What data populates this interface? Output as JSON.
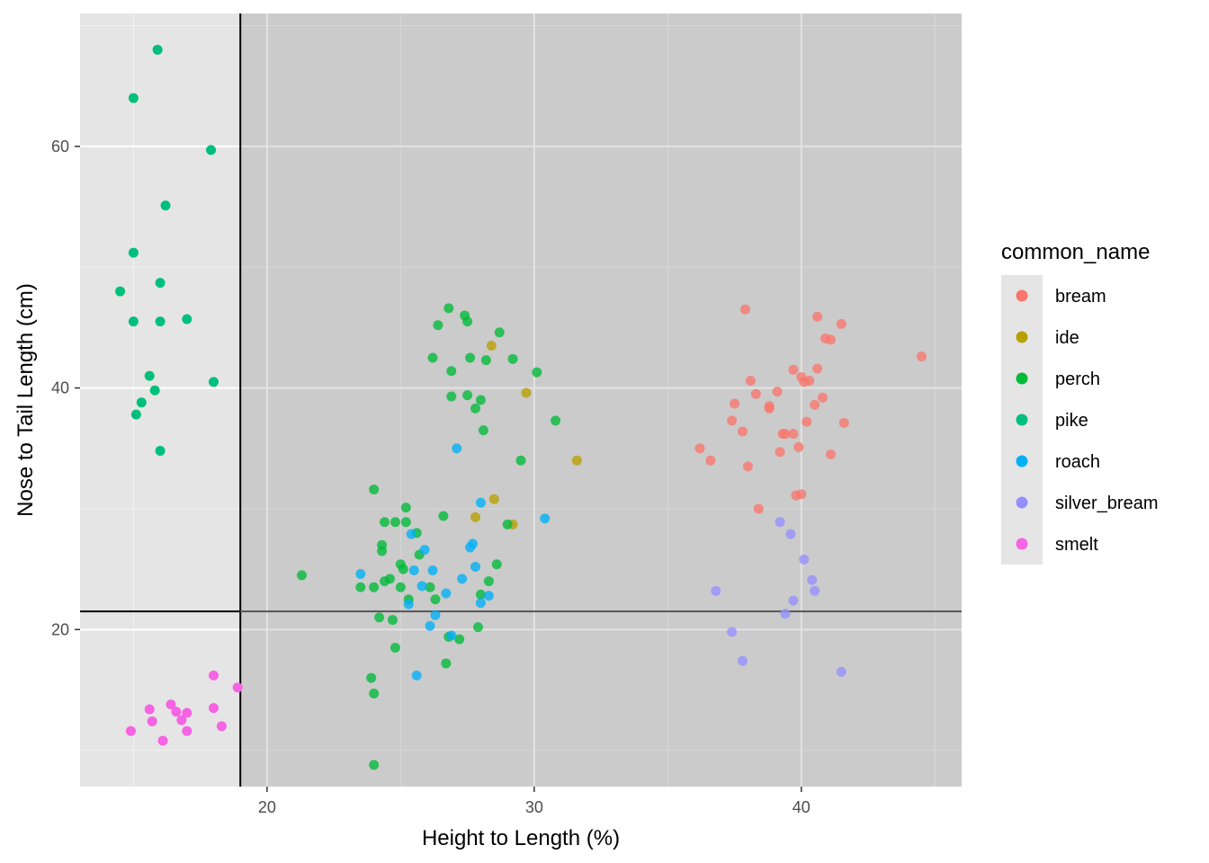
{
  "chart_data": {
    "type": "scatter",
    "xlabel": "Height to Length (%)",
    "ylabel": "Nose to Tail Length (cm)",
    "xlim": [
      13,
      46
    ],
    "ylim": [
      7,
      71
    ],
    "x_ticks": [
      20,
      30,
      40
    ],
    "x_tick_labels": [
      "20",
      "30",
      "40"
    ],
    "y_ticks": [
      20,
      40,
      60
    ],
    "y_tick_labels": [
      "20",
      "40",
      "60"
    ],
    "grid": true,
    "legend_placement": "right",
    "legend_title": "common_name",
    "reference_lines": {
      "vertical_x": 19,
      "horizontal_y": 21.5
    },
    "series": [
      {
        "name": "bream",
        "color": "#F8766D",
        "points": [
          [
            37.9,
            46.5
          ],
          [
            40.6,
            45.9
          ],
          [
            41.5,
            45.3
          ],
          [
            40.9,
            44.1
          ],
          [
            41.1,
            44.0
          ],
          [
            44.5,
            42.6
          ],
          [
            39.7,
            41.5
          ],
          [
            40.6,
            41.6
          ],
          [
            40.0,
            40.9
          ],
          [
            40.1,
            40.5
          ],
          [
            40.3,
            40.6
          ],
          [
            38.1,
            40.6
          ],
          [
            39.1,
            39.7
          ],
          [
            38.3,
            39.5
          ],
          [
            40.8,
            39.2
          ],
          [
            40.5,
            38.6
          ],
          [
            38.8,
            38.5
          ],
          [
            38.8,
            38.3
          ],
          [
            37.5,
            38.7
          ],
          [
            37.4,
            37.3
          ],
          [
            40.2,
            37.2
          ],
          [
            41.6,
            37.1
          ],
          [
            37.8,
            36.4
          ],
          [
            39.3,
            36.2
          ],
          [
            39.4,
            36.2
          ],
          [
            39.7,
            36.2
          ],
          [
            39.9,
            35.1
          ],
          [
            39.2,
            34.7
          ],
          [
            41.1,
            34.5
          ],
          [
            36.2,
            35.0
          ],
          [
            36.6,
            34.0
          ],
          [
            38.0,
            33.5
          ],
          [
            38.4,
            30.0
          ],
          [
            39.8,
            31.1
          ],
          [
            40.0,
            31.2
          ]
        ]
      },
      {
        "name": "ide",
        "color": "#B79F00",
        "points": [
          [
            28.4,
            43.5
          ],
          [
            29.7,
            39.6
          ],
          [
            31.6,
            34.0
          ],
          [
            28.5,
            30.8
          ],
          [
            27.8,
            29.3
          ],
          [
            29.2,
            28.7
          ]
        ]
      },
      {
        "name": "perch",
        "color": "#00BA38",
        "points": [
          [
            26.8,
            46.6
          ],
          [
            27.4,
            46.0
          ],
          [
            27.5,
            45.5
          ],
          [
            26.4,
            45.2
          ],
          [
            28.7,
            44.6
          ],
          [
            26.2,
            42.5
          ],
          [
            27.6,
            42.5
          ],
          [
            28.2,
            42.3
          ],
          [
            29.2,
            42.4
          ],
          [
            26.9,
            41.4
          ],
          [
            30.1,
            41.3
          ],
          [
            26.9,
            39.3
          ],
          [
            27.5,
            39.4
          ],
          [
            27.8,
            38.3
          ],
          [
            28.0,
            39.0
          ],
          [
            30.8,
            37.3
          ],
          [
            28.1,
            36.5
          ],
          [
            29.5,
            34.0
          ],
          [
            24.0,
            31.6
          ],
          [
            25.2,
            30.1
          ],
          [
            26.6,
            29.4
          ],
          [
            24.4,
            28.9
          ],
          [
            24.8,
            28.9
          ],
          [
            25.2,
            28.9
          ],
          [
            29.0,
            28.7
          ],
          [
            25.6,
            28.0
          ],
          [
            24.3,
            27.0
          ],
          [
            24.3,
            26.5
          ],
          [
            25.7,
            26.2
          ],
          [
            25.0,
            25.4
          ],
          [
            28.6,
            25.4
          ],
          [
            25.1,
            25.0
          ],
          [
            24.4,
            24.0
          ],
          [
            24.6,
            24.2
          ],
          [
            28.3,
            24.0
          ],
          [
            21.3,
            24.5
          ],
          [
            23.5,
            23.5
          ],
          [
            24.0,
            23.5
          ],
          [
            25.0,
            23.5
          ],
          [
            26.1,
            23.5
          ],
          [
            25.3,
            22.5
          ],
          [
            26.3,
            22.5
          ],
          [
            28.0,
            22.9
          ],
          [
            24.2,
            21.0
          ],
          [
            24.7,
            20.8
          ],
          [
            27.9,
            20.2
          ],
          [
            26.8,
            19.4
          ],
          [
            27.2,
            19.2
          ],
          [
            24.8,
            18.5
          ],
          [
            26.7,
            17.2
          ],
          [
            23.9,
            16.0
          ],
          [
            24.0,
            14.7
          ],
          [
            24.0,
            8.8
          ]
        ]
      },
      {
        "name": "pike",
        "color": "#00BF7D",
        "points": [
          [
            15.9,
            68.0
          ],
          [
            15.0,
            64.0
          ],
          [
            17.9,
            59.7
          ],
          [
            16.2,
            55.1
          ],
          [
            15.0,
            51.2
          ],
          [
            16.0,
            48.7
          ],
          [
            14.5,
            48.0
          ],
          [
            17.0,
            45.7
          ],
          [
            15.0,
            45.5
          ],
          [
            16.0,
            45.5
          ],
          [
            15.6,
            41.0
          ],
          [
            18.0,
            40.5
          ],
          [
            15.8,
            39.8
          ],
          [
            15.3,
            38.8
          ],
          [
            15.1,
            37.8
          ],
          [
            16.0,
            34.8
          ]
        ]
      },
      {
        "name": "roach",
        "color": "#00B0F6",
        "points": [
          [
            27.1,
            35.0
          ],
          [
            28.0,
            30.5
          ],
          [
            30.4,
            29.2
          ],
          [
            25.4,
            27.9
          ],
          [
            25.9,
            26.6
          ],
          [
            27.6,
            26.8
          ],
          [
            27.7,
            27.1
          ],
          [
            23.5,
            24.6
          ],
          [
            25.5,
            24.9
          ],
          [
            26.2,
            24.9
          ],
          [
            27.8,
            25.2
          ],
          [
            27.3,
            24.2
          ],
          [
            25.8,
            23.6
          ],
          [
            26.7,
            23.0
          ],
          [
            28.3,
            22.8
          ],
          [
            25.3,
            22.1
          ],
          [
            28.0,
            22.2
          ],
          [
            26.3,
            21.2
          ],
          [
            26.1,
            20.3
          ],
          [
            26.9,
            19.5
          ],
          [
            25.6,
            16.2
          ]
        ]
      },
      {
        "name": "silver_bream",
        "color": "#9590FF",
        "points": [
          [
            39.2,
            28.9
          ],
          [
            39.6,
            27.9
          ],
          [
            40.1,
            25.8
          ],
          [
            40.4,
            24.1
          ],
          [
            40.5,
            23.2
          ],
          [
            36.8,
            23.2
          ],
          [
            39.7,
            22.4
          ],
          [
            39.4,
            21.3
          ],
          [
            37.4,
            19.8
          ],
          [
            37.8,
            17.4
          ],
          [
            41.5,
            16.5
          ]
        ]
      },
      {
        "name": "smelt",
        "color": "#F564E3",
        "points": [
          [
            18.0,
            16.2
          ],
          [
            18.9,
            15.2
          ],
          [
            16.4,
            13.8
          ],
          [
            15.6,
            13.4
          ],
          [
            18.0,
            13.5
          ],
          [
            16.6,
            13.2
          ],
          [
            17.0,
            13.1
          ],
          [
            16.8,
            12.5
          ],
          [
            15.7,
            12.4
          ],
          [
            18.3,
            12.0
          ],
          [
            14.9,
            11.6
          ],
          [
            17.0,
            11.6
          ],
          [
            16.1,
            10.8
          ]
        ]
      }
    ]
  }
}
